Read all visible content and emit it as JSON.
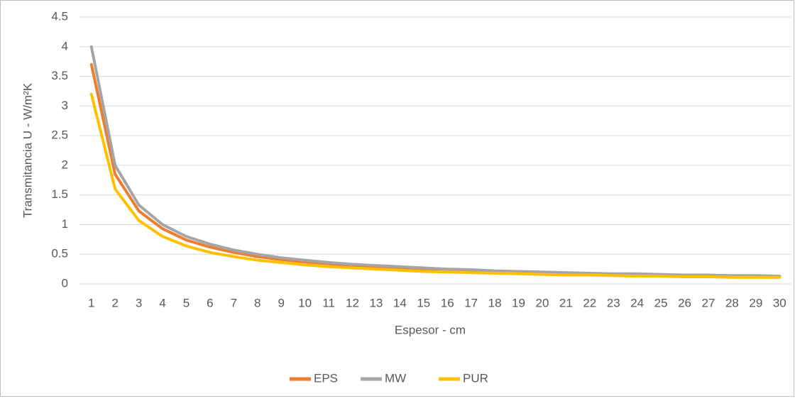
{
  "chart_data": {
    "type": "line",
    "xlabel": "Espesor - cm",
    "ylabel": "Transmitancia U - W/m²K",
    "categories": [
      "1",
      "2",
      "3",
      "4",
      "5",
      "6",
      "7",
      "8",
      "9",
      "10",
      "11",
      "12",
      "13",
      "14",
      "15",
      "16",
      "17",
      "18",
      "19",
      "20",
      "21",
      "22",
      "23",
      "24",
      "25",
      "26",
      "27",
      "28",
      "29",
      "30"
    ],
    "series": [
      {
        "name": "EPS",
        "color": "#ed7d31",
        "values": [
          3.7,
          1.85,
          1.23,
          0.93,
          0.74,
          0.62,
          0.53,
          0.46,
          0.41,
          0.37,
          0.34,
          0.31,
          0.28,
          0.26,
          0.25,
          0.23,
          0.22,
          0.21,
          0.19,
          0.19,
          0.18,
          0.17,
          0.16,
          0.15,
          0.15,
          0.14,
          0.14,
          0.13,
          0.13,
          0.12
        ]
      },
      {
        "name": "MW",
        "color": "#a5a5a5",
        "values": [
          4,
          2,
          1.33,
          1,
          0.8,
          0.67,
          0.57,
          0.5,
          0.44,
          0.4,
          0.36,
          0.33,
          0.31,
          0.29,
          0.27,
          0.25,
          0.24,
          0.22,
          0.21,
          0.2,
          0.19,
          0.18,
          0.17,
          0.17,
          0.16,
          0.15,
          0.15,
          0.14,
          0.14,
          0.13
        ]
      },
      {
        "name": "PUR",
        "color": "#ffc000",
        "values": [
          3.2,
          1.6,
          1.07,
          0.8,
          0.64,
          0.53,
          0.46,
          0.4,
          0.36,
          0.32,
          0.29,
          0.27,
          0.25,
          0.23,
          0.21,
          0.2,
          0.19,
          0.18,
          0.17,
          0.16,
          0.15,
          0.15,
          0.14,
          0.13,
          0.13,
          0.12,
          0.12,
          0.11,
          0.11,
          0.11
        ]
      }
    ],
    "ylim": [
      0,
      4.5
    ],
    "yticks": [
      0,
      0.5,
      1,
      1.5,
      2,
      2.5,
      3,
      3.5,
      4,
      4.5
    ],
    "grid": true,
    "legend": "bottom"
  }
}
